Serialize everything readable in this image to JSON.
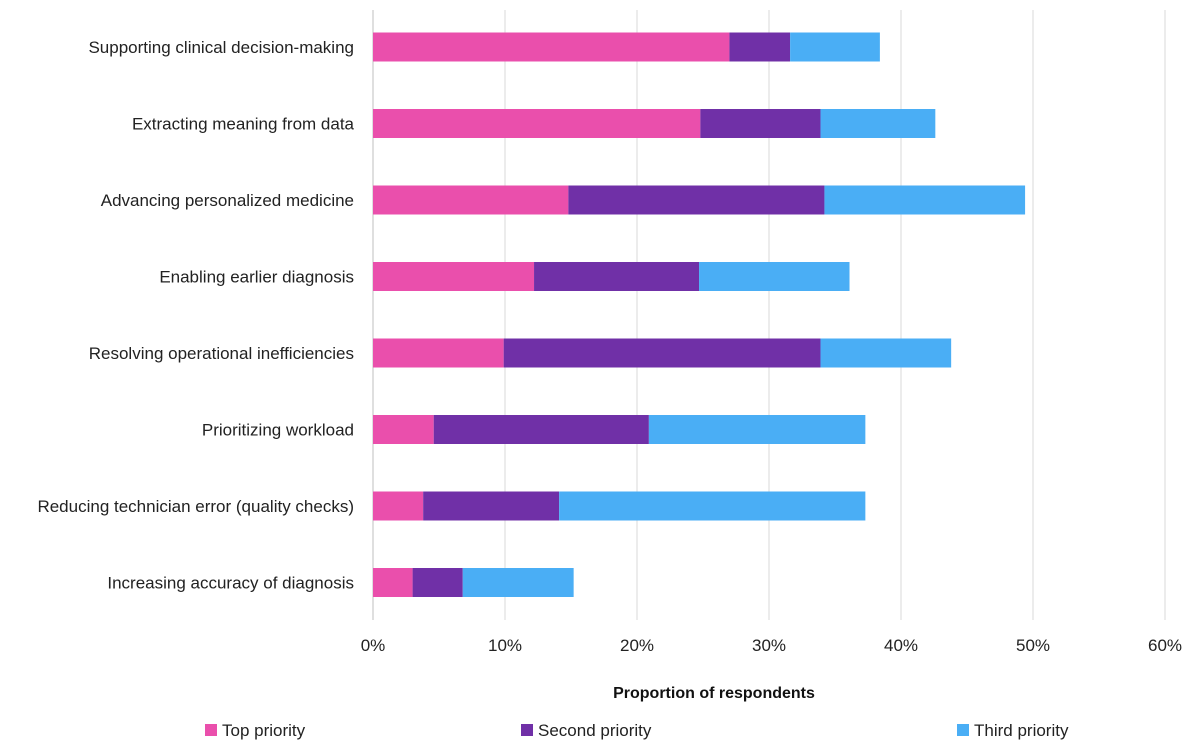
{
  "chart_data": {
    "type": "bar",
    "orientation": "horizontal",
    "stacked": true,
    "categories": [
      "Supporting clinical decision-making",
      "Extracting meaning from data",
      "Advancing personalized medicine",
      "Enabling earlier diagnosis",
      "Resolving operational inefficiencies",
      "Prioritizing workload",
      "Reducing technician error (quality checks)",
      "Increasing accuracy of diagnosis"
    ],
    "series": [
      {
        "name": "Top priority",
        "color": "#ea4fac",
        "values": [
          27.0,
          24.8,
          14.8,
          12.2,
          9.9,
          4.6,
          3.8,
          3.0
        ]
      },
      {
        "name": "Second priority",
        "color": "#7030a7",
        "values": [
          4.6,
          9.1,
          19.4,
          12.5,
          24.0,
          16.3,
          10.3,
          3.8
        ]
      },
      {
        "name": "Third priority",
        "color": "#4aaef5",
        "values": [
          6.8,
          8.7,
          15.2,
          11.4,
          9.9,
          16.4,
          23.2,
          8.4
        ]
      }
    ],
    "x_ticks": [
      "0%",
      "10%",
      "20%",
      "30%",
      "40%",
      "50%",
      "60%"
    ],
    "xlim": [
      0,
      60
    ],
    "xlabel": "Proportion  of respondents",
    "ylabel": "",
    "title": "",
    "grid": "vertical",
    "legend_position": "bottom"
  }
}
